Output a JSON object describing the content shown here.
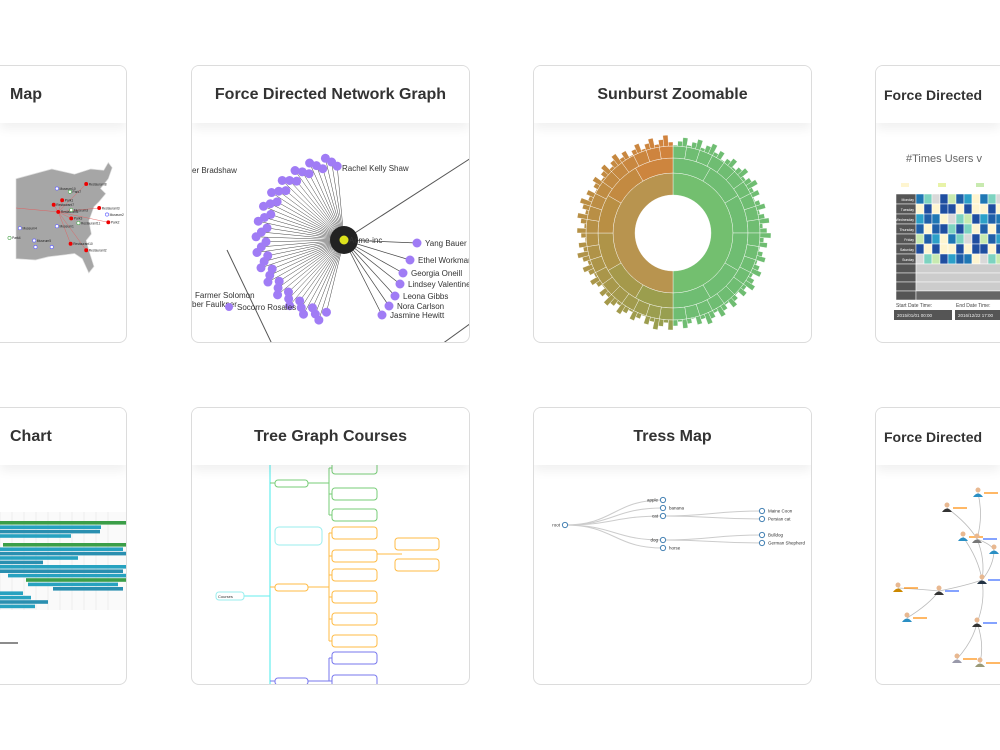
{
  "cards": [
    {
      "title": "Map",
      "labels": [
        "Restaurant8",
        "Museum10",
        "Park7",
        "Park1",
        "Restaurant7",
        "Restaurant3",
        "Restaurant1",
        "Museum3",
        "Museum2",
        "Park3",
        "Restaurant11",
        "Park2",
        "Museum1",
        "Museum4",
        "Park4",
        "Museum5",
        "Restaurant10",
        "Restaurant2"
      ]
    },
    {
      "title": "Force Directed Network Graph",
      "center": "Acme-inc",
      "left_labels": [
        "er Bradshaw",
        "Farmer Solomon",
        "ber Faulkner",
        "Socorro Rosales"
      ],
      "right_labels": [
        "Yang Bauer",
        "Ethel Workman",
        "Georgia Oneill",
        "Lindsey Valentine",
        "Leona Gibbs",
        "Nora Carlson",
        "Jasmine Hewitt"
      ],
      "top_label": "Rachel Kelly Shaw"
    },
    {
      "title": "Sunburst Zoomable"
    },
    {
      "title": "Force Directed",
      "chart_title": "#Times Users v",
      "days": [
        "Monday",
        "Tuesday",
        "Wednesday",
        "Thursday",
        "Friday",
        "Saturday",
        "Sunday"
      ],
      "start_label": "Start Date Time:",
      "end_label": "End Date Time:",
      "start_value": "2015/01/01 00:00",
      "end_value": "2016/12/22 17:00"
    },
    {
      "title": "Chart"
    },
    {
      "title": "Tree Graph Courses",
      "root": "Courses"
    },
    {
      "title": "Tress Map",
      "nodes": [
        "root",
        "apple",
        "banana",
        "cat",
        "dog",
        "horse",
        "Maine Coon",
        "Persian cat",
        "Bulldog",
        "German Shepherd"
      ]
    },
    {
      "title": "Force Directed"
    }
  ]
}
